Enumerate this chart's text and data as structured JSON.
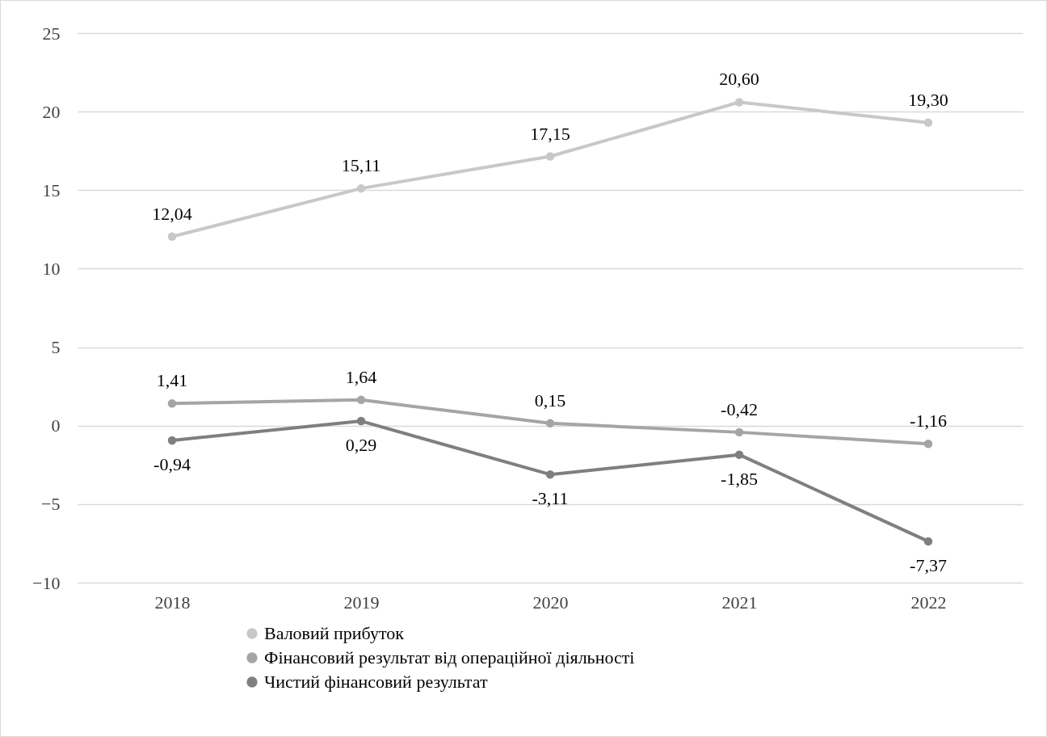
{
  "chart_data": {
    "type": "line",
    "categories": [
      "2018",
      "2019",
      "2020",
      "2021",
      "2022"
    ],
    "series": [
      {
        "name": "Валовий прибуток",
        "color": "#c8c8c8",
        "values": [
          12.04,
          15.11,
          17.15,
          20.6,
          19.3
        ],
        "value_labels": [
          "12,04",
          "15,11",
          "17,15",
          "20,60",
          "19,30"
        ]
      },
      {
        "name": "Фінансовий результат від операційної діяльності",
        "color": "#a5a5a5",
        "values": [
          1.41,
          1.64,
          0.15,
          -0.42,
          -1.16
        ],
        "value_labels": [
          "1,41",
          "1,64",
          "0,15",
          "-0,42",
          "-1,16"
        ]
      },
      {
        "name": "Чистий фінансовий результат",
        "color": "#7f7f7f",
        "values": [
          -0.94,
          0.29,
          -3.11,
          -1.85,
          -7.37
        ],
        "value_labels": [
          "-0,94",
          "0,29",
          "-3,11",
          "-1,85",
          "-7,37"
        ]
      }
    ],
    "ylim": [
      -10,
      25
    ],
    "yticks": [
      -10,
      -5,
      0,
      5,
      10,
      15,
      20,
      25
    ],
    "grid": "y",
    "legend": "bottom",
    "marker": "circle",
    "line_style": "solid"
  }
}
